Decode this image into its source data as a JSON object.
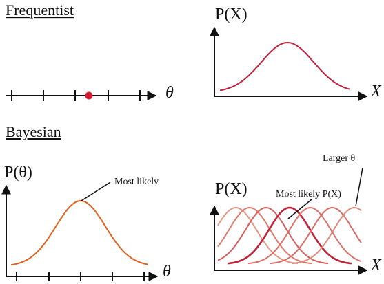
{
  "frequentist": {
    "heading": "Frequentist",
    "theta_label": "θ",
    "px_y_label": "P(X)",
    "px_x_label": "X",
    "point_color": "#d21d35",
    "curve_color": "#c21f3a"
  },
  "bayesian": {
    "heading": "Bayesian",
    "prior_y_label": "P(θ)",
    "prior_x_label": "θ",
    "prior_annotation": "Most likely",
    "prior_curve_color": "#e0601e",
    "px_y_label": "P(X)",
    "px_x_label": "X",
    "annotation_larger": "Larger θ",
    "annotation_most_likely": "Most likely P(X)",
    "family_colors": [
      "#e49683",
      "#dd7968",
      "#d75c5a",
      "#c22238",
      "#dd6f68",
      "#da6a64",
      "#e08a7c"
    ]
  }
}
